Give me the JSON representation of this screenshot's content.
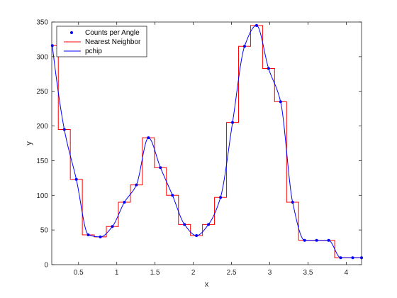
{
  "chart_data": {
    "type": "line",
    "xlabel": "x",
    "ylabel": "y",
    "xlim": [
      0.15,
      4.2
    ],
    "ylim": [
      0,
      350
    ],
    "xticks": [
      0.5,
      1,
      1.5,
      2,
      2.5,
      3,
      3.5,
      4
    ],
    "xtick_labels": [
      "0.5",
      "1",
      "1.5",
      "2",
      "2.5",
      "3",
      "3.5",
      "4"
    ],
    "yticks": [
      0,
      50,
      100,
      150,
      200,
      250,
      300,
      350
    ],
    "ytick_labels": [
      "0",
      "50",
      "100",
      "150",
      "200",
      "250",
      "300",
      "350"
    ],
    "grid": false,
    "legend": {
      "location": "top-left",
      "entries": [
        "Counts per Angle",
        "Nearest Neighbor",
        "pchip"
      ]
    },
    "series": [
      {
        "name": "Counts per Angle",
        "style": "markers",
        "color": "#0000ff",
        "x": [
          0.1571,
          0.3142,
          0.4712,
          0.6283,
          0.7854,
          0.9425,
          1.0996,
          1.2566,
          1.4137,
          1.5708,
          1.7279,
          1.885,
          2.042,
          2.1991,
          2.3562,
          2.5133,
          2.6704,
          2.8274,
          2.9845,
          3.1416,
          3.2987,
          3.4558,
          3.6128,
          3.7699,
          3.927,
          4.0841,
          4.2
        ],
        "y": [
          316,
          195,
          123,
          43,
          40,
          55,
          90,
          115,
          183,
          140,
          100,
          58,
          42,
          58,
          97,
          205,
          315,
          345,
          283,
          235,
          90,
          35,
          35,
          35,
          10,
          10,
          10
        ]
      },
      {
        "name": "Nearest Neighbor",
        "style": "step",
        "color": "#ff0000",
        "x": [
          0.1571,
          0.3142,
          0.4712,
          0.6283,
          0.7854,
          0.9425,
          1.0996,
          1.2566,
          1.4137,
          1.5708,
          1.7279,
          1.885,
          2.042,
          2.1991,
          2.3562,
          2.5133,
          2.6704,
          2.8274,
          2.9845,
          3.1416,
          3.2987,
          3.4558,
          3.6128,
          3.7699,
          3.927,
          4.0841,
          4.2
        ],
        "y": [
          316,
          195,
          123,
          43,
          40,
          55,
          90,
          115,
          183,
          140,
          100,
          58,
          42,
          58,
          97,
          205,
          315,
          345,
          283,
          235,
          90,
          35,
          35,
          35,
          10,
          10,
          10
        ]
      },
      {
        "name": "pchip",
        "style": "line",
        "color": "#0000ff",
        "x": [
          0.1571,
          0.3142,
          0.4712,
          0.6283,
          0.7854,
          0.9425,
          1.0996,
          1.2566,
          1.4137,
          1.5708,
          1.7279,
          1.885,
          2.042,
          2.1991,
          2.3562,
          2.5133,
          2.6704,
          2.8274,
          2.9845,
          3.1416,
          3.2987,
          3.4558,
          3.6128,
          3.7699,
          3.927,
          4.0841,
          4.2
        ],
        "y": [
          316,
          195,
          123,
          43,
          40,
          55,
          90,
          115,
          183,
          140,
          100,
          58,
          42,
          58,
          97,
          205,
          315,
          345,
          283,
          235,
          90,
          35,
          35,
          35,
          10,
          10,
          10
        ]
      }
    ]
  }
}
